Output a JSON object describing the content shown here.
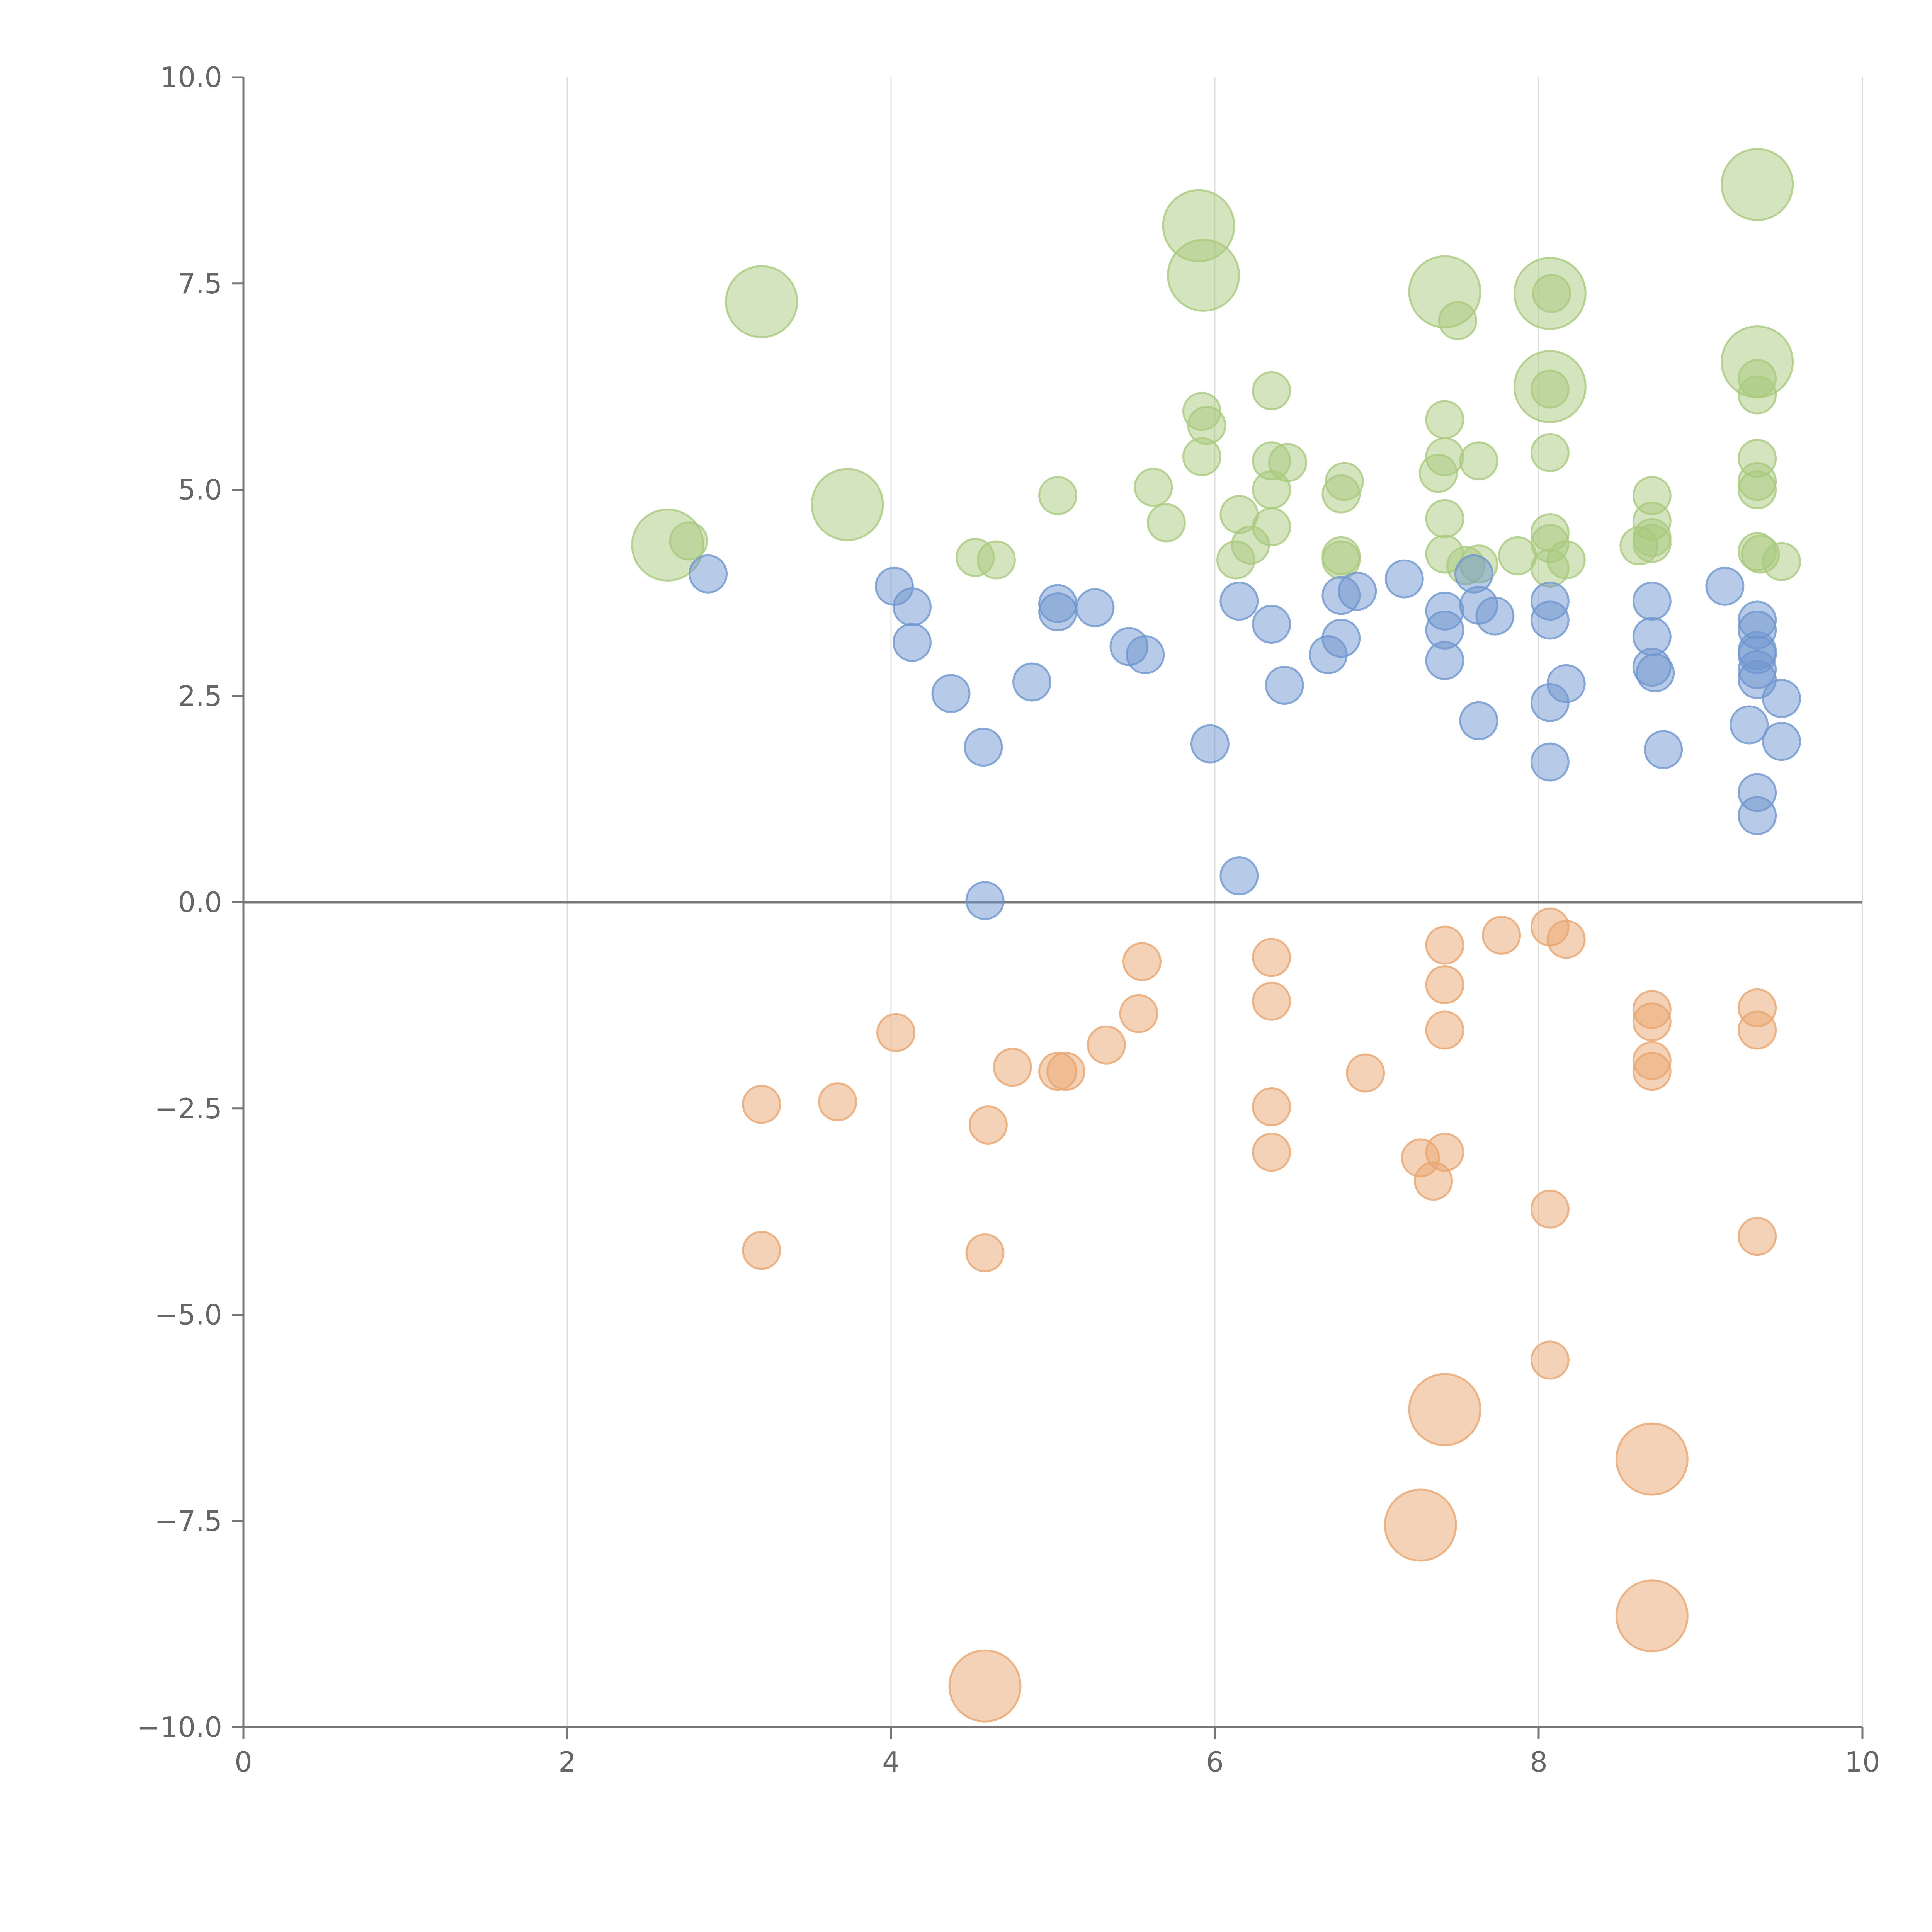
{
  "chart_data": {
    "type": "scatter",
    "title": "",
    "xlabel": "",
    "ylabel": "",
    "xlim": [
      0,
      10
    ],
    "ylim": [
      -10,
      10
    ],
    "x_ticks": [
      "0",
      "2",
      "4",
      "6",
      "8",
      "10"
    ],
    "x_tick_values": [
      0,
      2,
      4,
      6,
      8,
      10
    ],
    "y_ticks": [
      "10.0",
      "7.5",
      "5.0",
      "2.5",
      "0.0",
      "−2.5",
      "−5.0",
      "−7.5",
      "−10.0"
    ],
    "y_tick_values": [
      10,
      7.5,
      5,
      2.5,
      0,
      -2.5,
      -5,
      -7.5,
      -10
    ],
    "grid": "vertical lines at x ticks",
    "zero_line": true,
    "legend": "none",
    "colors": {
      "green": "#a9c97e",
      "blue": "#6f96cf",
      "orange": "#e9a56f",
      "axis": "#777777",
      "grid": "#dddddd"
    },
    "series": [
      {
        "color_key": "green",
        "points": [
          [
            9.35,
            8.7,
            3
          ],
          [
            5.9,
            8.2,
            3
          ],
          [
            5.93,
            7.6,
            3
          ],
          [
            3.2,
            7.28,
            3
          ],
          [
            7.42,
            7.4,
            3
          ],
          [
            8.07,
            7.38,
            3
          ],
          [
            8.08,
            7.38,
            1
          ],
          [
            7.5,
            7.05,
            1
          ],
          [
            9.35,
            6.55,
            3
          ],
          [
            9.35,
            6.35,
            1
          ],
          [
            9.35,
            6.15,
            1
          ],
          [
            8.07,
            6.25,
            3
          ],
          [
            8.07,
            6.22,
            1
          ],
          [
            6.35,
            6.2,
            1
          ],
          [
            5.92,
            5.95,
            1
          ],
          [
            5.95,
            5.78,
            1
          ],
          [
            7.42,
            5.85,
            1
          ],
          [
            5.92,
            5.4,
            1
          ],
          [
            8.07,
            5.45,
            1
          ],
          [
            7.42,
            5.4,
            1
          ],
          [
            7.63,
            5.35,
            1
          ],
          [
            6.35,
            5.35,
            1
          ],
          [
            6.45,
            5.33,
            1
          ],
          [
            9.35,
            5.38,
            1
          ],
          [
            7.38,
            5.2,
            1
          ],
          [
            6.8,
            5.1,
            1
          ],
          [
            6.78,
            4.95,
            1
          ],
          [
            9.35,
            5.1,
            1
          ],
          [
            9.35,
            5.0,
            1
          ],
          [
            5.62,
            5.03,
            1
          ],
          [
            6.35,
            5.0,
            1
          ],
          [
            5.03,
            4.93,
            1
          ],
          [
            3.73,
            4.82,
            3
          ],
          [
            8.7,
            4.93,
            1
          ],
          [
            7.42,
            4.65,
            1
          ],
          [
            6.15,
            4.7,
            1
          ],
          [
            5.7,
            4.6,
            1
          ],
          [
            6.35,
            4.55,
            1
          ],
          [
            8.7,
            4.62,
            1
          ],
          [
            2.62,
            4.33,
            3
          ],
          [
            2.75,
            4.38,
            1
          ],
          [
            8.07,
            4.48,
            1
          ],
          [
            8.07,
            4.35,
            1
          ],
          [
            8.7,
            4.42,
            1
          ],
          [
            8.7,
            4.35,
            1
          ],
          [
            8.62,
            4.32,
            1
          ],
          [
            6.22,
            4.33,
            1
          ],
          [
            7.42,
            4.22,
            1
          ],
          [
            7.87,
            4.2,
            1
          ],
          [
            9.35,
            4.25,
            1
          ],
          [
            9.37,
            4.22,
            1
          ],
          [
            4.52,
            4.18,
            1
          ],
          [
            4.65,
            4.15,
            1
          ],
          [
            6.13,
            4.15,
            1
          ],
          [
            6.78,
            4.2,
            1
          ],
          [
            6.78,
            4.15,
            1
          ],
          [
            8.17,
            4.15,
            1
          ],
          [
            9.5,
            4.13,
            1
          ],
          [
            7.55,
            4.08,
            1
          ],
          [
            7.63,
            4.1,
            1
          ],
          [
            8.07,
            4.05,
            1
          ]
        ]
      },
      {
        "color_key": "blue",
        "points": [
          [
            2.87,
            3.98,
            1
          ],
          [
            4.02,
            3.83,
            1
          ],
          [
            4.13,
            3.58,
            1
          ],
          [
            4.13,
            3.15,
            1
          ],
          [
            4.37,
            2.53,
            1
          ],
          [
            4.57,
            1.88,
            1
          ],
          [
            4.58,
            0.02,
            1
          ],
          [
            4.87,
            2.67,
            1
          ],
          [
            5.03,
            3.62,
            1
          ],
          [
            5.03,
            3.52,
            1
          ],
          [
            5.26,
            3.57,
            1
          ],
          [
            5.47,
            3.1,
            1
          ],
          [
            5.57,
            3.0,
            1
          ],
          [
            5.97,
            1.92,
            1
          ],
          [
            6.15,
            3.65,
            1
          ],
          [
            6.15,
            0.32,
            1
          ],
          [
            6.35,
            3.37,
            1
          ],
          [
            6.43,
            2.63,
            1
          ],
          [
            6.7,
            3.0,
            1
          ],
          [
            6.78,
            3.72,
            1
          ],
          [
            6.78,
            3.2,
            1
          ],
          [
            6.88,
            3.77,
            1
          ],
          [
            7.17,
            3.92,
            1
          ],
          [
            7.42,
            3.53,
            1
          ],
          [
            7.42,
            3.3,
            1
          ],
          [
            7.42,
            2.93,
            1
          ],
          [
            7.6,
            3.98,
            1
          ],
          [
            7.63,
            3.6,
            1
          ],
          [
            7.63,
            2.2,
            1
          ],
          [
            7.73,
            3.47,
            1
          ],
          [
            8.07,
            3.65,
            1
          ],
          [
            8.07,
            3.42,
            1
          ],
          [
            8.07,
            2.42,
            1
          ],
          [
            8.07,
            1.7,
            1
          ],
          [
            8.17,
            2.65,
            1
          ],
          [
            8.7,
            3.65,
            1
          ],
          [
            8.7,
            3.22,
            1
          ],
          [
            8.7,
            2.85,
            1
          ],
          [
            8.72,
            2.78,
            1
          ],
          [
            8.77,
            1.85,
            1
          ],
          [
            9.15,
            3.83,
            1
          ],
          [
            9.35,
            3.42,
            1
          ],
          [
            9.35,
            3.3,
            1
          ],
          [
            9.35,
            3.05,
            1
          ],
          [
            9.35,
            3.0,
            1
          ],
          [
            9.35,
            2.82,
            1
          ],
          [
            9.35,
            2.7,
            1
          ],
          [
            9.5,
            2.47,
            1
          ],
          [
            9.3,
            2.15,
            1
          ],
          [
            9.5,
            1.95,
            1
          ],
          [
            9.35,
            1.33,
            1
          ],
          [
            9.35,
            1.05,
            1
          ]
        ]
      },
      {
        "color_key": "orange",
        "points": [
          [
            3.2,
            -2.45,
            1
          ],
          [
            3.2,
            -4.22,
            1
          ],
          [
            3.67,
            -2.42,
            1
          ],
          [
            4.03,
            -1.58,
            1
          ],
          [
            4.58,
            -4.25,
            1
          ],
          [
            4.6,
            -2.7,
            1
          ],
          [
            4.58,
            -9.5,
            3
          ],
          [
            4.75,
            -2.0,
            1
          ],
          [
            5.03,
            -2.05,
            1
          ],
          [
            5.08,
            -2.05,
            1
          ],
          [
            5.33,
            -1.73,
            1
          ],
          [
            5.53,
            -1.35,
            1
          ],
          [
            5.55,
            -0.72,
            1
          ],
          [
            6.35,
            -0.67,
            1
          ],
          [
            6.35,
            -1.2,
            1
          ],
          [
            6.35,
            -2.48,
            1
          ],
          [
            6.35,
            -3.03,
            1
          ],
          [
            6.93,
            -2.07,
            1
          ],
          [
            7.27,
            -3.1,
            1
          ],
          [
            7.35,
            -3.38,
            1
          ],
          [
            7.42,
            -0.52,
            1
          ],
          [
            7.42,
            -1.0,
            1
          ],
          [
            7.42,
            -1.55,
            1
          ],
          [
            7.42,
            -3.03,
            1
          ],
          [
            7.42,
            -6.15,
            3
          ],
          [
            7.27,
            -7.55,
            3
          ],
          [
            7.77,
            -0.4,
            1
          ],
          [
            8.07,
            -0.3,
            1
          ],
          [
            8.17,
            -0.45,
            1
          ],
          [
            8.07,
            -3.72,
            1
          ],
          [
            8.07,
            -5.55,
            1
          ],
          [
            8.7,
            -1.3,
            1
          ],
          [
            8.7,
            -1.45,
            1
          ],
          [
            8.7,
            -1.92,
            1
          ],
          [
            8.7,
            -2.05,
            1
          ],
          [
            8.7,
            -6.75,
            3
          ],
          [
            8.7,
            -8.65,
            3
          ],
          [
            9.35,
            -1.28,
            1
          ],
          [
            9.35,
            -1.55,
            1
          ],
          [
            9.35,
            -4.05,
            1
          ]
        ]
      }
    ]
  }
}
